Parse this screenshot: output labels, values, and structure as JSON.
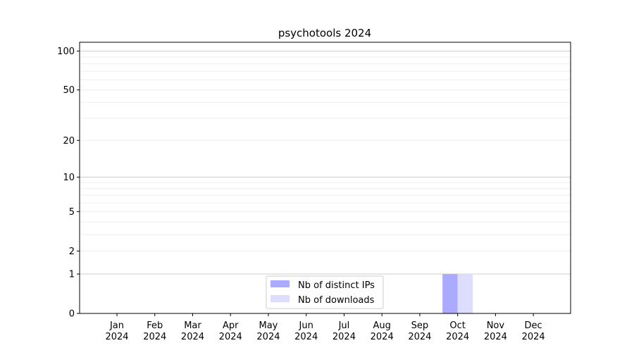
{
  "chart_data": {
    "type": "bar",
    "title": "psychotools 2024",
    "xlabel": "",
    "ylabel": "",
    "categories": [
      "Jan\n2024",
      "Feb\n2024",
      "Mar\n2024",
      "Apr\n2024",
      "May\n2024",
      "Jun\n2024",
      "Jul\n2024",
      "Aug\n2024",
      "Sep\n2024",
      "Oct\n2024",
      "Nov\n2024",
      "Dec\n2024"
    ],
    "series": [
      {
        "name": "Nb of distinct IPs",
        "color": "#aaaaff",
        "values": [
          0,
          0,
          0,
          0,
          0,
          0,
          0,
          0,
          0,
          1,
          0,
          0
        ]
      },
      {
        "name": "Nb of downloads",
        "color": "#ddddff",
        "values": [
          0,
          0,
          0,
          0,
          0,
          0,
          0,
          0,
          0,
          1,
          0,
          0
        ]
      }
    ],
    "yscale": "log(1+y)",
    "ylim": [
      0,
      117
    ],
    "yticks": [
      0,
      1,
      2,
      5,
      10,
      20,
      50,
      100
    ],
    "grid": true,
    "legend": "lower-center"
  }
}
